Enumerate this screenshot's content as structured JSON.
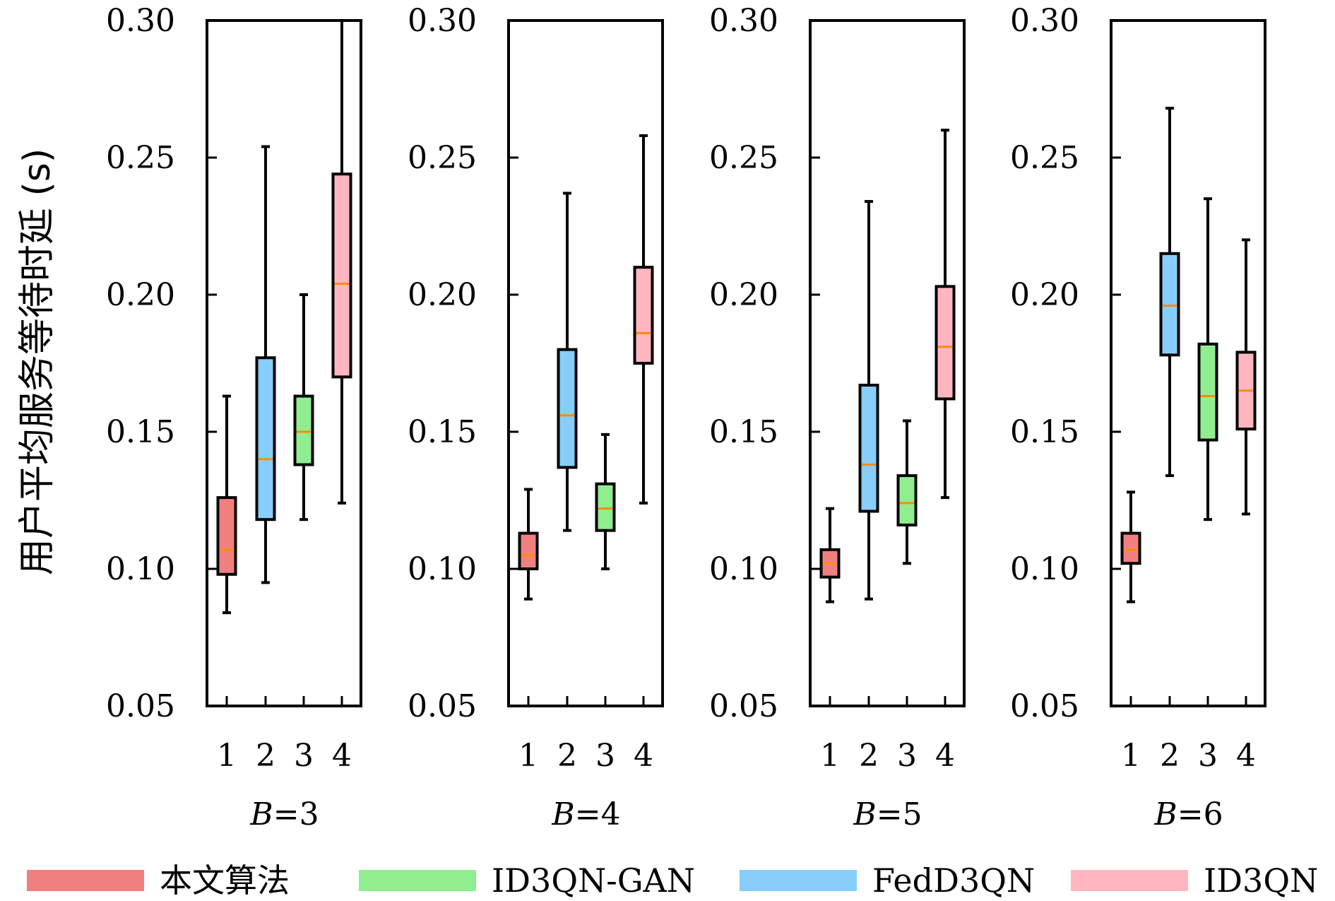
{
  "chart_data": {
    "type": "box",
    "ylabel": "用户平均服务等待时延 (s)",
    "ylim": [
      0.05,
      0.3
    ],
    "yticks": [
      "0.05",
      "0.10",
      "0.15",
      "0.20",
      "0.25",
      "0.30"
    ],
    "xticks": [
      "1",
      "2",
      "3",
      "4"
    ],
    "median_color": "#ff8c00",
    "series": [
      {
        "name": "本文算法",
        "color": "#f08080"
      },
      {
        "name": "FedD3QN",
        "color": "#87cefa"
      },
      {
        "name": "ID3QN-GAN",
        "color": "#90ee90"
      },
      {
        "name": "ID3QN",
        "color": "#ffb6c1"
      }
    ],
    "legend_order": [
      0,
      2,
      1,
      3
    ],
    "panels": [
      {
        "var": "B",
        "eq": "=3",
        "boxes": [
          {
            "whisker_low": 0.084,
            "q1": 0.098,
            "median": 0.107,
            "q3": 0.126,
            "whisker_high": 0.163
          },
          {
            "whisker_low": 0.095,
            "q1": 0.118,
            "median": 0.14,
            "q3": 0.177,
            "whisker_high": 0.254
          },
          {
            "whisker_low": 0.118,
            "q1": 0.138,
            "median": 0.15,
            "q3": 0.163,
            "whisker_high": 0.2
          },
          {
            "whisker_low": 0.124,
            "q1": 0.17,
            "median": 0.204,
            "q3": 0.244,
            "whisker_high": 0.3
          }
        ]
      },
      {
        "var": "B",
        "eq": "=4",
        "boxes": [
          {
            "whisker_low": 0.089,
            "q1": 0.1,
            "median": 0.105,
            "q3": 0.113,
            "whisker_high": 0.129
          },
          {
            "whisker_low": 0.114,
            "q1": 0.137,
            "median": 0.156,
            "q3": 0.18,
            "whisker_high": 0.237
          },
          {
            "whisker_low": 0.1,
            "q1": 0.114,
            "median": 0.122,
            "q3": 0.131,
            "whisker_high": 0.149
          },
          {
            "whisker_low": 0.124,
            "q1": 0.175,
            "median": 0.186,
            "q3": 0.21,
            "whisker_high": 0.258
          }
        ]
      },
      {
        "var": "B",
        "eq": "=5",
        "boxes": [
          {
            "whisker_low": 0.088,
            "q1": 0.097,
            "median": 0.102,
            "q3": 0.107,
            "whisker_high": 0.122
          },
          {
            "whisker_low": 0.089,
            "q1": 0.121,
            "median": 0.138,
            "q3": 0.167,
            "whisker_high": 0.234
          },
          {
            "whisker_low": 0.102,
            "q1": 0.116,
            "median": 0.124,
            "q3": 0.134,
            "whisker_high": 0.154
          },
          {
            "whisker_low": 0.126,
            "q1": 0.162,
            "median": 0.181,
            "q3": 0.203,
            "whisker_high": 0.26
          }
        ]
      },
      {
        "var": "B",
        "eq": "=6",
        "boxes": [
          {
            "whisker_low": 0.088,
            "q1": 0.102,
            "median": 0.107,
            "q3": 0.113,
            "whisker_high": 0.128
          },
          {
            "whisker_low": 0.134,
            "q1": 0.178,
            "median": 0.196,
            "q3": 0.215,
            "whisker_high": 0.268
          },
          {
            "whisker_low": 0.118,
            "q1": 0.147,
            "median": 0.163,
            "q3": 0.182,
            "whisker_high": 0.235
          },
          {
            "whisker_low": 0.12,
            "q1": 0.151,
            "median": 0.165,
            "q3": 0.179,
            "whisker_high": 0.22
          }
        ]
      }
    ]
  }
}
